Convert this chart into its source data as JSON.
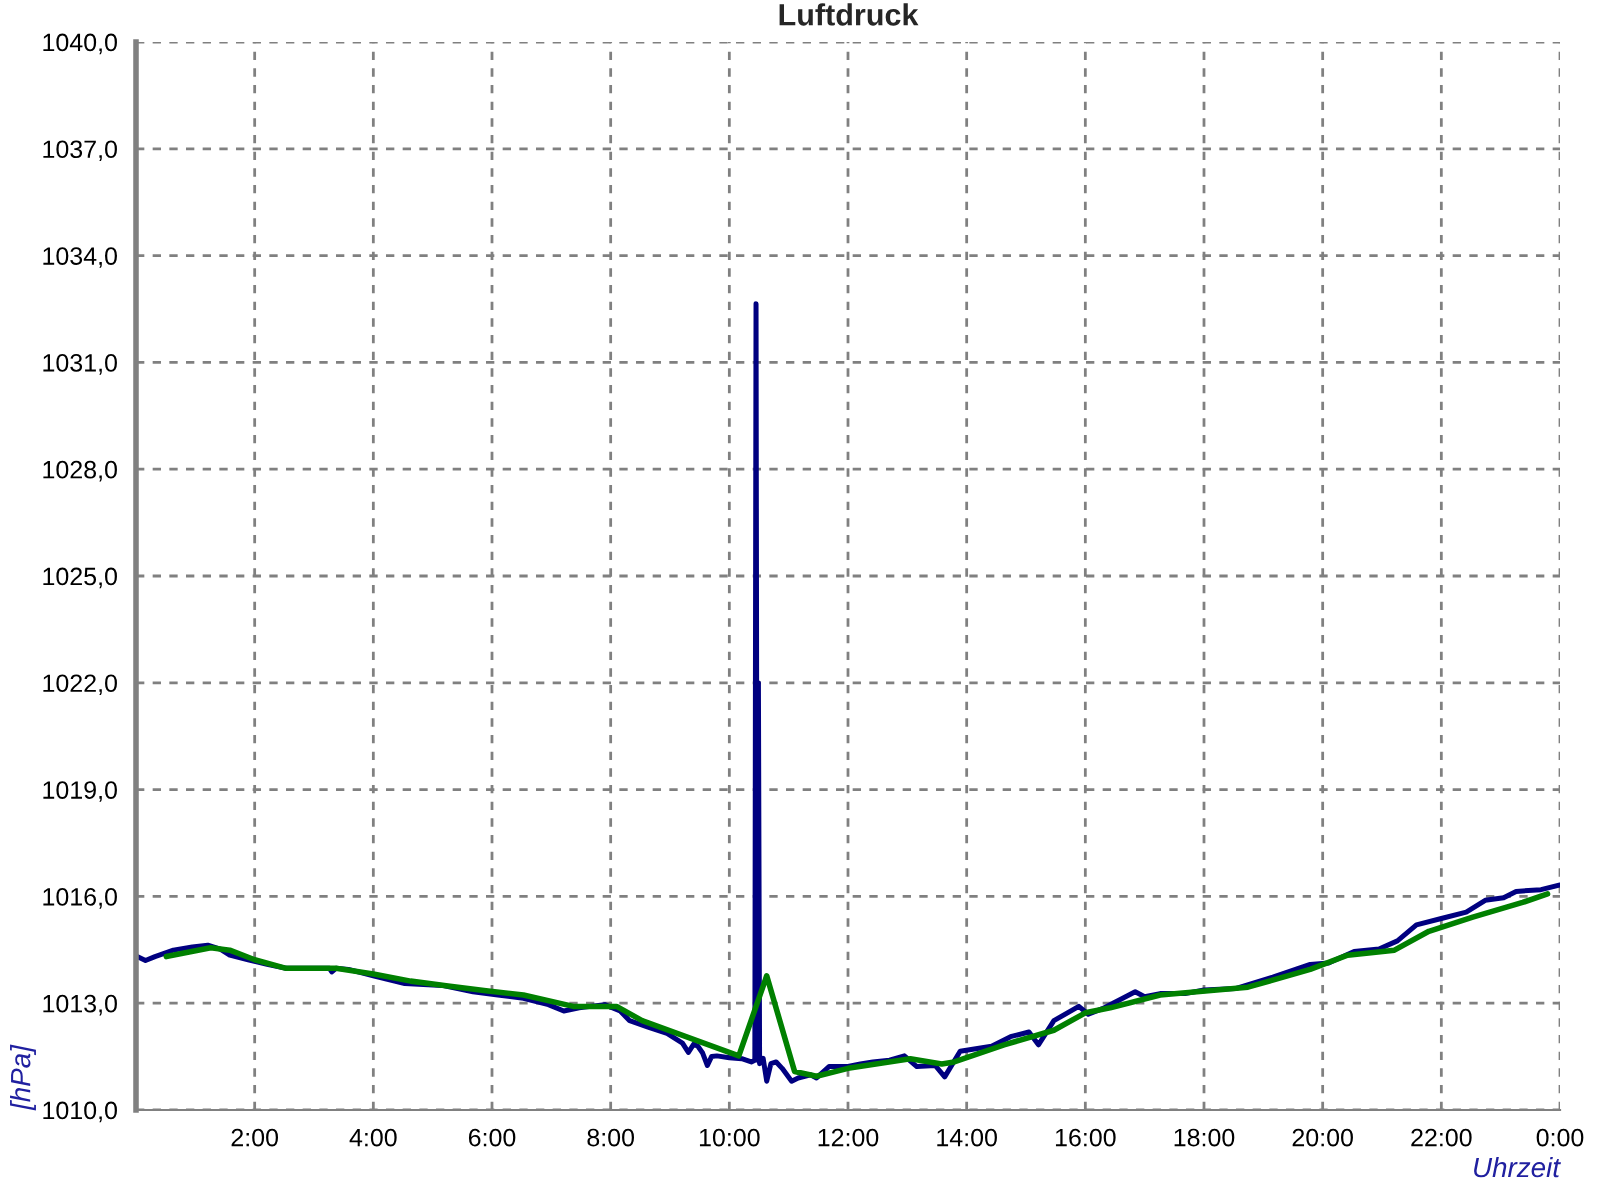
{
  "chart_data": {
    "type": "line",
    "title": "Luftdruck",
    "xlabel": "Uhrzeit",
    "ylabel": "[hPa]",
    "xlim": [
      0,
      24
    ],
    "xticks": [
      {
        "value": 2,
        "label": "2:00"
      },
      {
        "value": 4,
        "label": "4:00"
      },
      {
        "value": 6,
        "label": "6:00"
      },
      {
        "value": 8,
        "label": "8:00"
      },
      {
        "value": 10,
        "label": "10:00"
      },
      {
        "value": 12,
        "label": "12:00"
      },
      {
        "value": 14,
        "label": "14:00"
      },
      {
        "value": 16,
        "label": "16:00"
      },
      {
        "value": 18,
        "label": "18:00"
      },
      {
        "value": 20,
        "label": "20:00"
      },
      {
        "value": 22,
        "label": "22:00"
      },
      {
        "value": 24,
        "label": "0:00"
      }
    ],
    "ylim": [
      1010,
      1040
    ],
    "yticks": [
      {
        "value": 1010,
        "label": "1010,0"
      },
      {
        "value": 1013,
        "label": "1013,0"
      },
      {
        "value": 1016,
        "label": "1016,0"
      },
      {
        "value": 1019,
        "label": "1019,0"
      },
      {
        "value": 1022,
        "label": "1022,0"
      },
      {
        "value": 1025,
        "label": "1025,0"
      },
      {
        "value": 1028,
        "label": "1028,0"
      },
      {
        "value": 1031,
        "label": "1031,0"
      },
      {
        "value": 1034,
        "label": "1034,0"
      },
      {
        "value": 1037,
        "label": "1037,0"
      },
      {
        "value": 1040,
        "label": "1040,0"
      }
    ],
    "grid": true,
    "series": [
      {
        "color": "#000080",
        "x": [
          0.02,
          0.16,
          0.32,
          0.63,
          0.95,
          1.21,
          1.42,
          1.58,
          1.89,
          2.21,
          2.53,
          3.26,
          3.3,
          3.37,
          3.58,
          4.0,
          4.53,
          5.16,
          5.68,
          6.1,
          6.53,
          6.95,
          7.21,
          7.47,
          7.9,
          8.16,
          8.32,
          8.63,
          8.95,
          9.21,
          9.31,
          9.4,
          9.47,
          9.55,
          9.63,
          9.7,
          9.79,
          10.0,
          10.21,
          10.37,
          10.43,
          10.45,
          10.47,
          10.49,
          10.51,
          10.57,
          10.63,
          10.7,
          10.79,
          10.89,
          11.05,
          11.16,
          11.37,
          11.47,
          11.68,
          12.0,
          12.21,
          12.42,
          12.7,
          12.95,
          13.16,
          13.47,
          13.63,
          13.89,
          14.42,
          14.74,
          15.05,
          15.21,
          15.47,
          15.89,
          16.05,
          16.32,
          16.63,
          16.84,
          17.0,
          17.26,
          17.68,
          18.0,
          18.53,
          19.16,
          19.79,
          20.1,
          20.53,
          20.95,
          21.26,
          21.58,
          22.0,
          22.42,
          22.74,
          23.05,
          23.26,
          23.68,
          24.0
        ],
        "values": [
          1014.31,
          1014.2,
          1014.31,
          1014.49,
          1014.58,
          1014.63,
          1014.52,
          1014.35,
          1014.22,
          1014.09,
          1013.98,
          1013.98,
          1013.88,
          1013.98,
          1013.95,
          1013.77,
          1013.55,
          1013.5,
          1013.32,
          1013.23,
          1013.14,
          1012.96,
          1012.78,
          1012.87,
          1012.96,
          1012.78,
          1012.51,
          1012.33,
          1012.15,
          1011.88,
          1011.62,
          1011.85,
          1011.79,
          1011.6,
          1011.25,
          1011.5,
          1011.52,
          1011.47,
          1011.44,
          1011.35,
          1011.4,
          1032.65,
          1011.4,
          1022.0,
          1011.3,
          1011.45,
          1010.81,
          1011.3,
          1011.35,
          1011.17,
          1010.81,
          1010.9,
          1010.99,
          1010.9,
          1011.22,
          1011.22,
          1011.29,
          1011.35,
          1011.4,
          1011.52,
          1011.22,
          1011.25,
          1010.93,
          1011.65,
          1011.79,
          1012.06,
          1012.19,
          1011.83,
          1012.51,
          1012.91,
          1012.69,
          1012.87,
          1013.14,
          1013.32,
          1013.18,
          1013.27,
          1013.27,
          1013.37,
          1013.41,
          1013.73,
          1014.09,
          1014.13,
          1014.45,
          1014.52,
          1014.75,
          1015.2,
          1015.38,
          1015.56,
          1015.89,
          1015.96,
          1016.14,
          1016.19,
          1016.32
        ]
      },
      {
        "color": "#008000",
        "x": [
          0.51,
          1.26,
          1.58,
          2.0,
          2.53,
          3.37,
          4.0,
          4.63,
          5.26,
          5.9,
          6.53,
          7.37,
          8.1,
          8.53,
          10.16,
          10.63,
          11.1,
          11.47,
          12.0,
          13.05,
          13.58,
          13.79,
          14.63,
          15.47,
          16.0,
          16.42,
          17.26,
          18.74,
          19.79,
          20.42,
          21.21,
          21.79,
          22.53,
          23.37,
          23.79
        ],
        "values": [
          1014.31,
          1014.56,
          1014.49,
          1014.22,
          1013.98,
          1013.98,
          1013.82,
          1013.62,
          1013.48,
          1013.35,
          1013.23,
          1012.91,
          1012.91,
          1012.51,
          1011.52,
          1013.77,
          1011.08,
          1010.95,
          1011.17,
          1011.44,
          1011.29,
          1011.35,
          1011.83,
          1012.24,
          1012.73,
          1012.87,
          1013.23,
          1013.45,
          1013.95,
          1014.35,
          1014.49,
          1015.02,
          1015.42,
          1015.83,
          1016.07
        ]
      }
    ]
  }
}
